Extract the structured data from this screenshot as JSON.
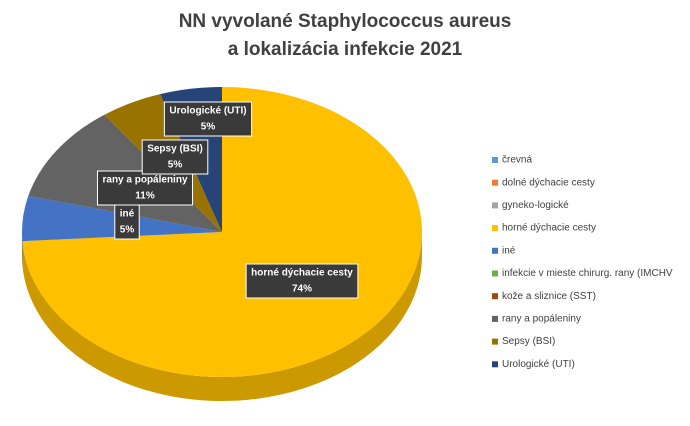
{
  "chart_data": {
    "type": "pie",
    "title": [
      "NN vyvolané Staphylococcus aureus",
      "a lokalizácia infekcie 2021"
    ],
    "categories": [
      "črevná",
      "dolné dýchacie cesty",
      "gyneko-logické",
      "horné dýchacie cesty",
      "iné",
      "infekcie  v mieste chirurg.  rany (IMCHV",
      "kože a sliznice (SST)",
      "rany a popáleniny",
      "Sepsy (BSI)",
      "Urologické (UTI)"
    ],
    "values": [
      0,
      0,
      0,
      74,
      5,
      0,
      0,
      11,
      5,
      5
    ],
    "value_labels": [
      null,
      null,
      null,
      "74%",
      "5%",
      null,
      null,
      "11%",
      "5%",
      "5%"
    ],
    "colors": [
      "#5b9bd5",
      "#ed7d31",
      "#a5a5a5",
      "#ffc000",
      "#4472c4",
      "#70ad47",
      "#9e480e",
      "#636363",
      "#997300",
      "#264478"
    ],
    "legend": "right"
  }
}
